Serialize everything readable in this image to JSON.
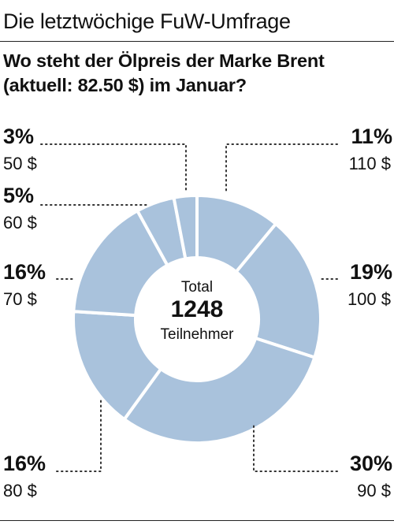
{
  "header": {
    "title": "Die letztwöchige FuW-Umfrage"
  },
  "question": "Wo steht der Ölpreis der Marke Brent (aktuell: 82.50 $) im Januar?",
  "center": {
    "total_label": "Total",
    "count": "1248",
    "unit_label": "Teilnehmer"
  },
  "colors": {
    "slice": "#a9c2dc",
    "divider": "#ffffff",
    "leader": "#333333"
  },
  "chart_data": {
    "type": "pie",
    "donut": true,
    "title": "Wo steht der Ölpreis der Marke Brent (aktuell: 82.50 $) im Januar?",
    "categories": [
      "110 $",
      "100 $",
      "90 $",
      "80 $",
      "70 $",
      "60 $",
      "50 $"
    ],
    "values": [
      11,
      19,
      30,
      16,
      16,
      5,
      3
    ],
    "labels": [
      "11%",
      "19%",
      "30%",
      "16%",
      "16%",
      "5%",
      "3%"
    ],
    "total": 1248
  }
}
